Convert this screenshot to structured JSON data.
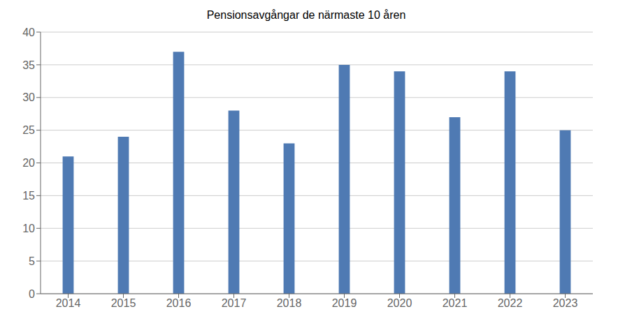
{
  "chart_data": {
    "type": "bar",
    "title": "Pensionsavgångar de närmaste 10 åren",
    "categories": [
      "2014",
      "2015",
      "2016",
      "2017",
      "2018",
      "2019",
      "2020",
      "2021",
      "2022",
      "2023"
    ],
    "values": [
      21,
      24,
      37,
      28,
      23,
      35,
      34,
      27,
      34,
      25
    ],
    "color": "#4f7ab3",
    "ylim": [
      0,
      40
    ],
    "yticks": [
      0,
      5,
      10,
      15,
      20,
      25,
      30,
      35,
      40
    ],
    "grid": true
  }
}
